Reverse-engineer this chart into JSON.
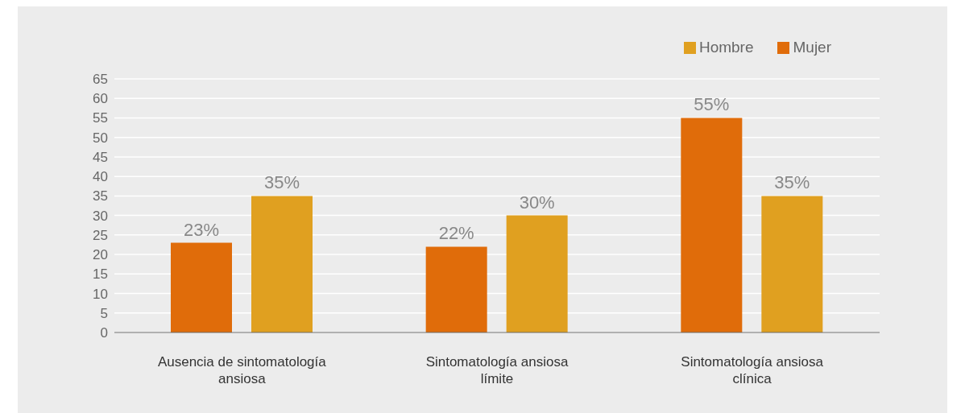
{
  "chart_data": {
    "type": "bar",
    "categories": [
      "Ausencia de sintomatología ansiosa",
      "Sintomatología ansiosa límite",
      "Sintomatología ansiosa clínica"
    ],
    "series": [
      {
        "name": "Mujer",
        "color": "#e06c0a",
        "values": [
          23,
          22,
          55
        ],
        "value_labels": [
          "23%",
          "22%",
          "55%"
        ]
      },
      {
        "name": "Hombre",
        "color": "#e0a020",
        "values": [
          35,
          30,
          35
        ],
        "value_labels": [
          "35%",
          "30%",
          "35%"
        ]
      }
    ],
    "ylim": [
      0,
      65
    ],
    "yticks": [
      0,
      5,
      10,
      15,
      20,
      25,
      30,
      35,
      40,
      45,
      50,
      55,
      60,
      65
    ],
    "grid": "y",
    "legend": "top right"
  }
}
